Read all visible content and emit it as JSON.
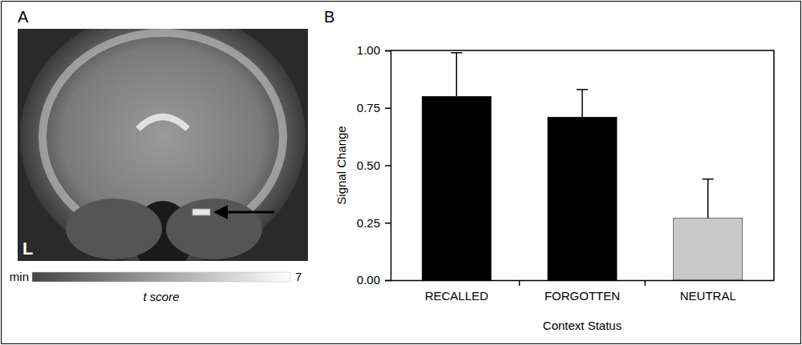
{
  "chart_data": [
    {
      "type": "image",
      "panel": "A",
      "annotations": [
        "L"
      ],
      "colorbar": {
        "title": "t score",
        "min_label": "min",
        "max": 7
      }
    },
    {
      "type": "bar",
      "panel": "B",
      "categories": [
        "RECALLED",
        "FORGOTTEN",
        "NEUTRAL"
      ],
      "values": [
        0.8,
        0.71,
        0.27
      ],
      "errors": [
        0.19,
        0.12,
        0.17
      ],
      "colors": [
        "#000000",
        "#000000",
        "#c8c8c8"
      ],
      "x_label": "Context Status",
      "y_label": "Signal Change",
      "ylim": [
        0,
        1
      ],
      "yticks": [
        {
          "value": 0,
          "label": "0.00"
        },
        {
          "value": 0.25,
          "label": "0.25"
        },
        {
          "value": 0.5,
          "label": "0.50"
        },
        {
          "value": 0.75,
          "label": "0.75"
        },
        {
          "value": 1,
          "label": "1.00"
        }
      ],
      "grid": false
    }
  ]
}
